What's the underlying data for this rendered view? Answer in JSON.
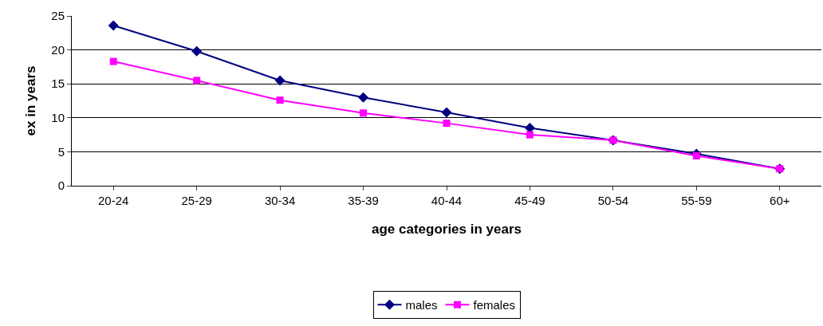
{
  "chart_data": {
    "type": "line",
    "xlabel": "age categories in years",
    "ylabel": "ex in years",
    "categories": [
      "20-24",
      "25-29",
      "30-34",
      "35-39",
      "40-44",
      "45-49",
      "50-54",
      "55-59",
      "60+"
    ],
    "series": [
      {
        "name": "males",
        "color": "#000080",
        "marker": "diamond",
        "values": [
          23.6,
          19.8,
          15.5,
          13.0,
          10.8,
          8.5,
          6.7,
          4.7,
          2.5
        ]
      },
      {
        "name": "females",
        "color": "#ff00ff",
        "marker": "square",
        "values": [
          18.3,
          15.5,
          12.6,
          10.7,
          9.2,
          7.5,
          6.7,
          4.4,
          2.5
        ]
      }
    ],
    "ylim": [
      0,
      25
    ],
    "yticks": [
      0,
      5,
      10,
      15,
      20,
      25
    ],
    "grid": "y",
    "legend": "bottom",
    "line_style": "solid"
  }
}
